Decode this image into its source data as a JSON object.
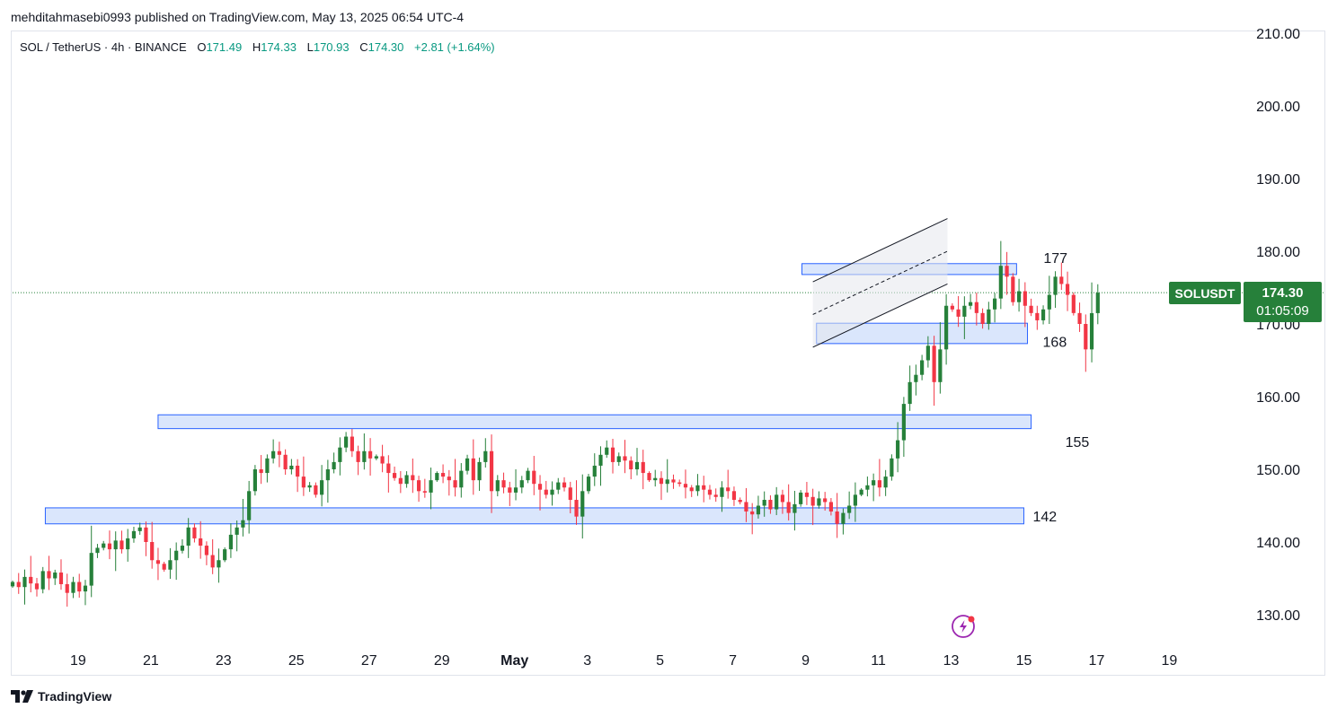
{
  "publisher": "mehditahmasebi0993 published on TradingView.com, May 13, 2025 06:54 UTC-4",
  "legend": {
    "symbol": "SOL / TetherUS · 4h · BINANCE",
    "open_label": "O",
    "open": "171.49",
    "high_label": "H",
    "high": "174.33",
    "low_label": "L",
    "low": "170.93",
    "close_label": "C",
    "close": "174.30",
    "change": "+2.81 (+1.64%)"
  },
  "price_tag": {
    "symbol": "SOLUSDT",
    "price": "174.30",
    "countdown": "01:05:09"
  },
  "footer": {
    "brand": "TradingView"
  },
  "colors": {
    "up": "#26803a",
    "down": "#f23645",
    "zone_fill": "#d4e2fb",
    "zone_stroke": "#2962ff",
    "channel": "#131722",
    "price_line": "#26803a"
  },
  "chart_data": {
    "type": "candlestick",
    "title": "SOL / TetherUS · 4h · BINANCE",
    "ylim": [
      123,
      211
    ],
    "y_ticks": [
      "130.00",
      "140.00",
      "150.00",
      "160.00",
      "170.00",
      "180.00",
      "190.00",
      "200.00",
      "210.00"
    ],
    "x_ticks": [
      {
        "label": "19",
        "day": 0
      },
      {
        "label": "21",
        "day": 2
      },
      {
        "label": "23",
        "day": 4
      },
      {
        "label": "25",
        "day": 6
      },
      {
        "label": "27",
        "day": 8
      },
      {
        "label": "29",
        "day": 10
      },
      {
        "label": "May",
        "day": 12
      },
      {
        "label": "3",
        "day": 14
      },
      {
        "label": "5",
        "day": 16
      },
      {
        "label": "7",
        "day": 18
      },
      {
        "label": "9",
        "day": 20
      },
      {
        "label": "11",
        "day": 22
      },
      {
        "label": "13",
        "day": 24
      },
      {
        "label": "15",
        "day": 26
      },
      {
        "label": "17",
        "day": 28
      },
      {
        "label": "19",
        "day": 30
      }
    ],
    "x_range_days": [
      -1.8,
      31.2
    ],
    "candles_per_day": 6,
    "first_candle_day": -1.8,
    "closes": [
      134.5,
      133.8,
      135.2,
      134.3,
      133.5,
      136.0,
      135.0,
      135.8,
      134.2,
      133.0,
      134.5,
      133.2,
      134.0,
      138.5,
      139.2,
      139.8,
      139.0,
      140.2,
      139.0,
      140.5,
      141.5,
      142.0,
      140.0,
      137.5,
      137.0,
      136.2,
      137.5,
      138.8,
      139.5,
      142.0,
      140.5,
      139.5,
      138.2,
      136.5,
      137.5,
      139.0,
      141.0,
      142.0,
      143.0,
      147.0,
      150.0,
      149.5,
      151.5,
      152.5,
      152.0,
      150.0,
      150.5,
      149.0,
      147.5,
      147.8,
      146.5,
      148.5,
      150.0,
      151.0,
      153.0,
      154.5,
      152.5,
      151.0,
      152.5,
      151.5,
      151.8,
      150.8,
      149.5,
      148.8,
      148.0,
      149.2,
      148.5,
      147.0,
      146.8,
      148.5,
      149.5,
      149.0,
      148.5,
      147.5,
      149.8,
      151.5,
      148.5,
      151.0,
      152.5,
      147.0,
      148.5,
      147.5,
      146.8,
      147.5,
      148.5,
      149.8,
      148.0,
      147.2,
      146.5,
      147.2,
      148.2,
      147.5,
      145.8,
      143.5,
      147.0,
      149.0,
      150.5,
      152.0,
      153.0,
      151.0,
      151.8,
      151.2,
      150.0,
      151.0,
      149.5,
      148.5,
      148.8,
      148.0,
      148.6,
      148.2,
      148.0,
      147.5,
      147.0,
      147.8,
      147.2,
      146.5,
      146.2,
      147.5,
      147.0,
      145.8,
      145.5,
      144.2,
      143.8,
      145.0,
      145.8,
      144.5,
      146.5,
      145.5,
      144.0,
      145.2,
      146.8,
      146.2,
      145.0,
      146.0,
      145.5,
      144.2,
      142.5,
      144.0,
      145.0,
      146.5,
      147.2,
      147.8,
      148.5,
      147.5,
      149.0,
      151.5,
      154.0,
      159.0,
      162.0,
      163.0,
      165.0,
      167.0,
      162.0,
      166.5,
      172.5,
      172.0,
      171.0,
      172.5,
      173.0,
      171.5,
      170.0,
      172.0,
      173.5,
      178.0,
      176.5,
      173.0,
      174.5,
      172.5,
      171.5,
      170.5,
      172.0,
      174.0,
      176.5,
      175.5,
      174.0,
      171.5,
      170.0,
      166.5,
      171.49,
      174.3
    ],
    "zones": [
      {
        "label": "177",
        "low": 176.8,
        "high": 178.3,
        "from_day": 19.9,
        "to_day": 25.8
      },
      {
        "label": "168",
        "low": 167.3,
        "high": 170.1,
        "from_day": 20.3,
        "to_day": 26.1
      },
      {
        "label": "155",
        "low": 155.6,
        "high": 157.5,
        "from_day": 2.2,
        "to_day": 26.2
      },
      {
        "label": "142",
        "low": 142.5,
        "high": 144.7,
        "from_day": -0.9,
        "to_day": 26.0
      }
    ],
    "channel": {
      "upper": [
        [
          20.2,
          175.8
        ],
        [
          23.9,
          184.5
        ]
      ],
      "middle": [
        [
          20.2,
          171.3
        ],
        [
          23.9,
          180.0
        ]
      ],
      "lower": [
        [
          20.2,
          166.8
        ],
        [
          23.9,
          175.5
        ]
      ]
    },
    "last_price": 174.3
  }
}
